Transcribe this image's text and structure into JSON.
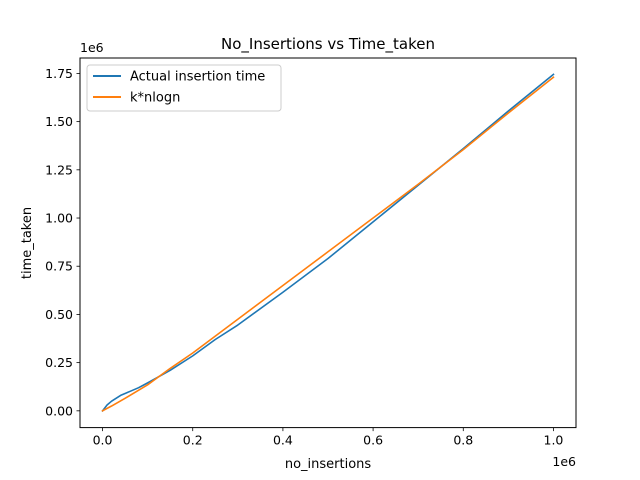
{
  "chart_data": {
    "type": "line",
    "title": "No_Insertions vs Time_taken",
    "xlabel": "no_insertions",
    "ylabel": "time_taken",
    "x_offset_text": "1e6",
    "y_offset_text": "1e6",
    "xlim": [
      -0.05,
      1.05
    ],
    "ylim": [
      -0.087,
      1.83
    ],
    "xticks": [
      0.0,
      0.2,
      0.4,
      0.6,
      0.8,
      1.0
    ],
    "xtick_labels": [
      "0.0",
      "0.2",
      "0.4",
      "0.6",
      "0.8",
      "1.0"
    ],
    "yticks": [
      0.0,
      0.25,
      0.5,
      0.75,
      1.0,
      1.25,
      1.5,
      1.75
    ],
    "ytick_labels": [
      "0.00",
      "0.25",
      "0.50",
      "0.75",
      "1.00",
      "1.25",
      "1.50",
      "1.75"
    ],
    "grid": false,
    "legend_position": "top-left",
    "series": [
      {
        "name": "Actual insertion time",
        "color": "#1f77b4",
        "x": [
          0.0,
          0.01,
          0.02,
          0.04,
          0.06,
          0.08,
          0.1,
          0.15,
          0.2,
          0.25,
          0.3,
          0.4,
          0.5,
          0.6,
          0.7,
          0.8,
          0.9,
          1.0
        ],
        "y": [
          0.0,
          0.03,
          0.05,
          0.08,
          0.1,
          0.12,
          0.145,
          0.21,
          0.285,
          0.37,
          0.445,
          0.615,
          0.79,
          0.98,
          1.17,
          1.36,
          1.555,
          1.745
        ]
      },
      {
        "name": "k*nlogn",
        "color": "#ff7f0e",
        "x": [
          0.0,
          0.02,
          0.05,
          0.1,
          0.15,
          0.2,
          0.3,
          0.4,
          0.5,
          0.6,
          0.7,
          0.8,
          0.9,
          1.0
        ],
        "y": [
          0.0,
          0.025,
          0.065,
          0.135,
          0.22,
          0.3,
          0.475,
          0.65,
          0.825,
          1.0,
          1.175,
          1.355,
          1.545,
          1.73
        ]
      }
    ]
  }
}
